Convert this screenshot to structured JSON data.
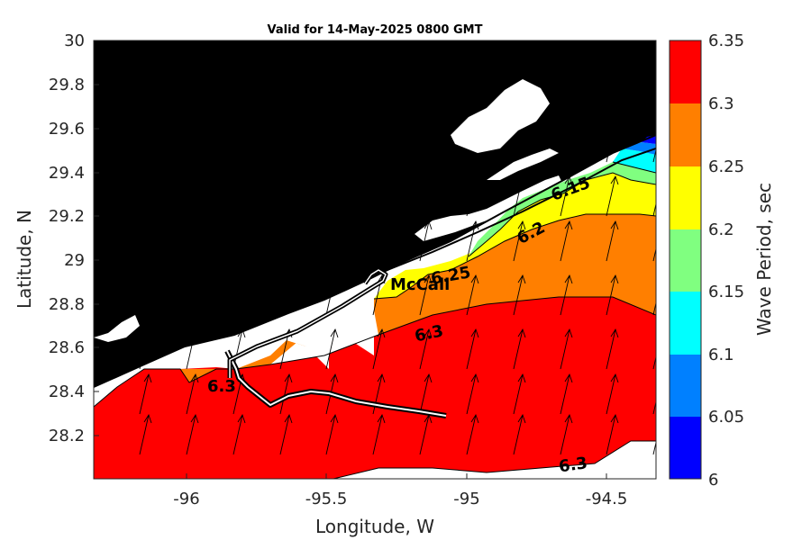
{
  "title": "Valid for 14-May-2025 0800 GMT",
  "xlabel": "Longitude, W",
  "ylabel": "Latitude, N",
  "colorbar_label": "Wave Period, sec",
  "x_ticks": [
    "-96",
    "-95.5",
    "-95",
    "-94.5"
  ],
  "y_ticks": [
    "30",
    "29.8",
    "29.6",
    "29.4",
    "29.2",
    "29",
    "28.8",
    "28.6",
    "28.4",
    "28.2"
  ],
  "colorbar_ticks": [
    "6.35",
    "6.3",
    "6.25",
    "6.2",
    "6.15",
    "6.1",
    "6.05",
    "6"
  ],
  "colorbar_colors": [
    "#ff0000",
    "#ff7f00",
    "#ffff00",
    "#80ff80",
    "#00ffff",
    "#0080ff",
    "#0000ff"
  ],
  "place_label": "McCall",
  "contour_labels": [
    "6.3",
    "6.3",
    "6.3",
    "6.25",
    "6.2",
    "6.15"
  ],
  "chart_data": {
    "type": "heatmap",
    "title": "Valid for 14-May-2025 0800 GMT",
    "xlabel": "Longitude, W",
    "ylabel": "Latitude, N",
    "xlim": [
      -96.35,
      -94.35
    ],
    "ylim": [
      28.0,
      30.0
    ],
    "colorbar": {
      "label": "Wave Period, sec",
      "range": [
        6.0,
        6.35
      ],
      "step": 0.05
    },
    "contour_levels": [
      6.15,
      6.2,
      6.25,
      6.3
    ],
    "vector_direction": "north-northeast"
  }
}
